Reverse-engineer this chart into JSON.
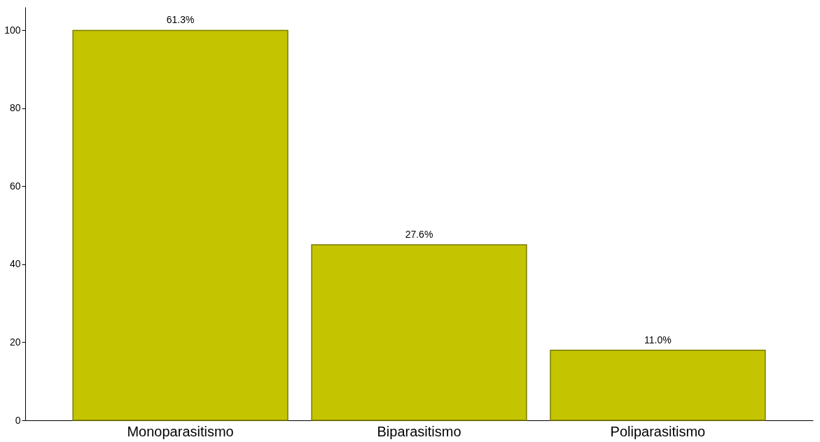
{
  "chart_data": {
    "type": "bar",
    "categories": [
      "Monoparasitismo",
      "Biparasitismo",
      "Poliparasitismo"
    ],
    "values": [
      100,
      45,
      18
    ],
    "annotations": [
      {
        "text": "61.3%",
        "x": "Monoparasitismo",
        "y": 100
      },
      {
        "text": "27.6%",
        "x": "Biparasitismo",
        "y": 45
      },
      {
        "text": "11.0%",
        "x": "Poliparasitismo",
        "y": 18
      }
    ],
    "color": "#c4c400",
    "ylim": [
      0,
      106
    ],
    "yticks": [
      0,
      20,
      40,
      60,
      80,
      100
    ],
    "grid": false
  }
}
